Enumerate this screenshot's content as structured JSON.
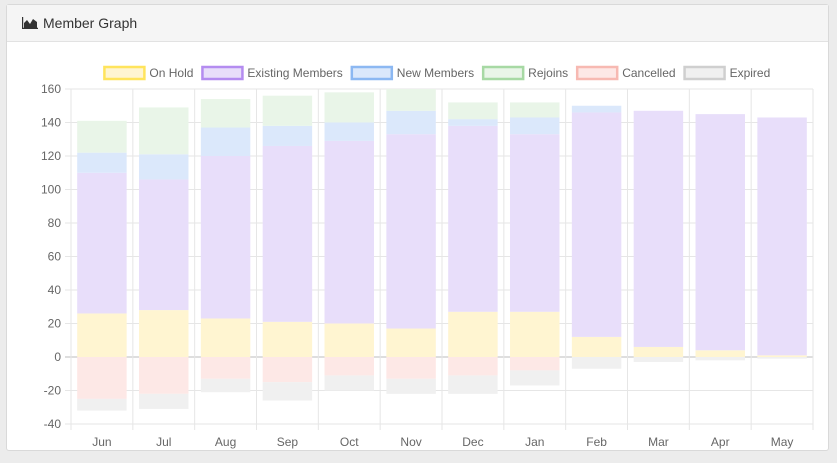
{
  "panel": {
    "title": "Member Graph",
    "icon": "area-chart-icon"
  },
  "chart_data": {
    "type": "bar",
    "stacked": true,
    "title": "",
    "xlabel": "",
    "ylabel": "",
    "ylim": [
      -40,
      160
    ],
    "yticks": [
      160,
      140,
      120,
      100,
      80,
      60,
      40,
      20,
      0,
      -20,
      -40
    ],
    "grid": true,
    "legend_position": "top",
    "categories": [
      "Jun",
      "Jul",
      "Aug",
      "Sep",
      "Oct",
      "Nov",
      "Dec",
      "Jan",
      "Feb",
      "Mar",
      "Apr",
      "May"
    ],
    "series": [
      {
        "name": "On Hold",
        "fill": "#fff5d1",
        "border": "#ffe45c",
        "values": [
          26,
          28,
          23,
          21,
          20,
          17,
          27,
          27,
          12,
          6,
          4,
          1
        ]
      },
      {
        "name": "Existing Members",
        "fill": "#e8defa",
        "border": "#b48cf0",
        "values": [
          84,
          78,
          97,
          105,
          109,
          116,
          111,
          106,
          134,
          141,
          141,
          142
        ]
      },
      {
        "name": "New Members",
        "fill": "#dbe8fb",
        "border": "#8cb8f2",
        "values": [
          12,
          15,
          17,
          12,
          11,
          14,
          4,
          10,
          4,
          0,
          0,
          0
        ]
      },
      {
        "name": "Rejoins",
        "fill": "#e9f5e8",
        "border": "#a7d9a4",
        "values": [
          19,
          28,
          17,
          18,
          18,
          13,
          10,
          9,
          0,
          0,
          0,
          0
        ]
      },
      {
        "name": "Cancelled",
        "fill": "#fde8e6",
        "border": "#f7b9b2",
        "values": [
          -25,
          -22,
          -13,
          -15,
          -11,
          -13,
          -11,
          -8,
          0,
          0,
          0,
          0
        ]
      },
      {
        "name": "Expired",
        "fill": "#f0f0f0",
        "border": "#cfcfcf",
        "values": [
          -7,
          -9,
          -8,
          -11,
          -9,
          -9,
          -11,
          -9,
          -7,
          -3,
          -2,
          -1
        ]
      }
    ]
  }
}
